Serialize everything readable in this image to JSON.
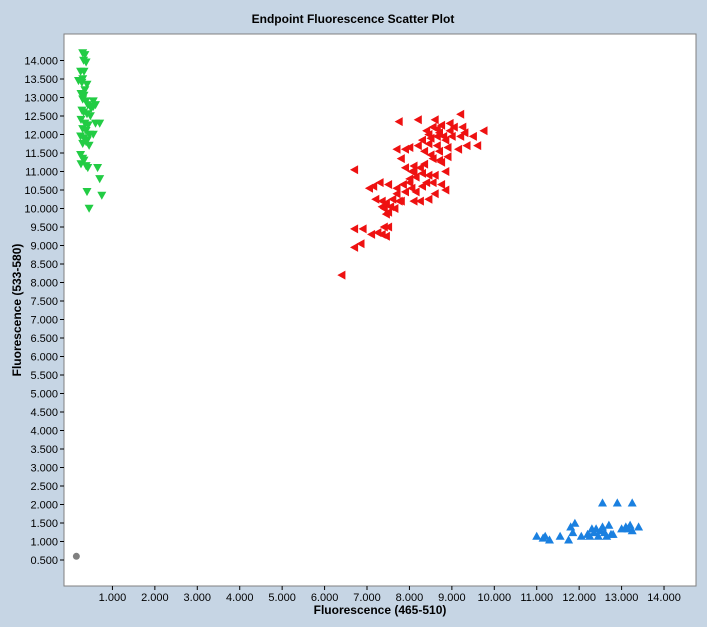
{
  "chart_data": {
    "type": "scatter",
    "title": "Endpoint Fluorescence Scatter Plot",
    "xlabel": "Fluorescence (465-510)",
    "ylabel": "Fluorescence (533-580)",
    "xlim": [
      0,
      15000
    ],
    "ylim": [
      0,
      15000
    ],
    "x_ticks": [
      1000,
      2000,
      3000,
      4000,
      5000,
      6000,
      7000,
      8000,
      9000,
      10000,
      11000,
      12000,
      13000,
      14000
    ],
    "x_tick_labels": [
      "1.000",
      "2.000",
      "3.000",
      "4.000",
      "5.000",
      "6.000",
      "7.000",
      "8.000",
      "9.000",
      "10.000",
      "11.000",
      "12.000",
      "13.000",
      "14.000"
    ],
    "y_ticks": [
      500,
      1000,
      1500,
      2000,
      2500,
      3000,
      3500,
      4000,
      4500,
      5000,
      5500,
      6000,
      6500,
      7000,
      7500,
      8000,
      8500,
      9000,
      9500,
      10000,
      10500,
      11000,
      11500,
      12000,
      12500,
      13000,
      13500,
      14000
    ],
    "y_tick_labels": [
      "0.500",
      "1.000",
      "1.500",
      "2.000",
      "2.500",
      "3.000",
      "3.500",
      "4.000",
      "4.500",
      "5.000",
      "5.500",
      "6.000",
      "6.500",
      "7.000",
      "7.500",
      "8.000",
      "8.500",
      "9.000",
      "9.500",
      "10.000",
      "10.500",
      "11.000",
      "11.500",
      "12.000",
      "12.500",
      "13.000",
      "13.500",
      "14.000"
    ],
    "grid": false,
    "background": "#c6d5e4",
    "plot_background": "#ffffff",
    "series": [
      {
        "marker": "triangle-down",
        "color": "#22cc44",
        "points": [
          [
            300,
            14200
          ],
          [
            350,
            14150
          ],
          [
            320,
            14000
          ],
          [
            380,
            13950
          ],
          [
            250,
            13700
          ],
          [
            330,
            13700
          ],
          [
            300,
            13500
          ],
          [
            200,
            13450
          ],
          [
            280,
            13400
          ],
          [
            400,
            13350
          ],
          [
            350,
            13200
          ],
          [
            260,
            13100
          ],
          [
            330,
            13050
          ],
          [
            300,
            12950
          ],
          [
            380,
            12900
          ],
          [
            420,
            12800
          ],
          [
            500,
            12700
          ],
          [
            550,
            12750
          ],
          [
            280,
            12650
          ],
          [
            320,
            12600
          ],
          [
            400,
            12550
          ],
          [
            480,
            12500
          ],
          [
            260,
            12400
          ],
          [
            350,
            12300
          ],
          [
            430,
            12250
          ],
          [
            300,
            12150
          ],
          [
            380,
            12100
          ],
          [
            460,
            12000
          ],
          [
            250,
            11950
          ],
          [
            330,
            11900
          ],
          [
            410,
            11850
          ],
          [
            380,
            11800
          ],
          [
            300,
            11750
          ],
          [
            450,
            11700
          ],
          [
            250,
            11450
          ],
          [
            300,
            11350
          ],
          [
            330,
            11300
          ],
          [
            260,
            11200
          ],
          [
            380,
            11150
          ],
          [
            420,
            11100
          ],
          [
            600,
            12300
          ],
          [
            700,
            12300
          ],
          [
            550,
            12000
          ],
          [
            650,
            11100
          ],
          [
            700,
            10800
          ],
          [
            400,
            10450
          ],
          [
            750,
            10350
          ],
          [
            450,
            10000
          ],
          [
            550,
            12900
          ],
          [
            600,
            12800
          ]
        ]
      },
      {
        "marker": "triangle-left",
        "color": "#ee1111",
        "points": [
          [
            6400,
            8200
          ],
          [
            6700,
            8950
          ],
          [
            6850,
            9050
          ],
          [
            6700,
            9450
          ],
          [
            6900,
            9450
          ],
          [
            7100,
            9300
          ],
          [
            7250,
            9350
          ],
          [
            7400,
            9500
          ],
          [
            7350,
            9300
          ],
          [
            7450,
            9250
          ],
          [
            7500,
            9500
          ],
          [
            7400,
            10000
          ],
          [
            7550,
            10050
          ],
          [
            7650,
            10000
          ],
          [
            7350,
            10200
          ],
          [
            7450,
            10150
          ],
          [
            7600,
            10250
          ],
          [
            7750,
            10200
          ],
          [
            7800,
            10200
          ],
          [
            7450,
            9850
          ],
          [
            7150,
            10600
          ],
          [
            7300,
            10700
          ],
          [
            7500,
            10650
          ],
          [
            7700,
            10550
          ],
          [
            7850,
            10650
          ],
          [
            8000,
            10700
          ],
          [
            7900,
            10450
          ],
          [
            8050,
            10550
          ],
          [
            8150,
            10450
          ],
          [
            8300,
            10600
          ],
          [
            8000,
            10800
          ],
          [
            8150,
            10850
          ],
          [
            8300,
            10950
          ],
          [
            8450,
            10900
          ],
          [
            8250,
            10200
          ],
          [
            8450,
            10250
          ],
          [
            8600,
            10400
          ],
          [
            8750,
            10650
          ],
          [
            8850,
            10500
          ],
          [
            8100,
            10200
          ],
          [
            7900,
            11100
          ],
          [
            8100,
            11150
          ],
          [
            8350,
            11200
          ],
          [
            8550,
            11350
          ],
          [
            8700,
            11300
          ],
          [
            8900,
            11400
          ],
          [
            8500,
            11450
          ],
          [
            8250,
            11100
          ],
          [
            8100,
            11000
          ],
          [
            7800,
            11350
          ],
          [
            7700,
            11600
          ],
          [
            7900,
            11600
          ],
          [
            8200,
            11700
          ],
          [
            8450,
            11750
          ],
          [
            8650,
            11700
          ],
          [
            8900,
            11650
          ],
          [
            9150,
            11600
          ],
          [
            8350,
            11550
          ],
          [
            8700,
            11550
          ],
          [
            8000,
            11650
          ],
          [
            8300,
            11850
          ],
          [
            8500,
            11900
          ],
          [
            8650,
            11950
          ],
          [
            8800,
            11950
          ],
          [
            9000,
            11950
          ],
          [
            9200,
            11950
          ],
          [
            8450,
            12000
          ],
          [
            8700,
            12050
          ],
          [
            8950,
            12100
          ],
          [
            9300,
            12050
          ],
          [
            9500,
            11950
          ],
          [
            9750,
            12100
          ],
          [
            8550,
            12200
          ],
          [
            8750,
            12250
          ],
          [
            9050,
            12200
          ],
          [
            9250,
            12200
          ],
          [
            8600,
            12400
          ],
          [
            8950,
            12300
          ],
          [
            9200,
            12550
          ],
          [
            7750,
            12350
          ],
          [
            8200,
            12400
          ],
          [
            8400,
            12100
          ],
          [
            8650,
            12150
          ],
          [
            8850,
            11850
          ],
          [
            9350,
            11700
          ],
          [
            9600,
            11700
          ],
          [
            8750,
            11250
          ],
          [
            8850,
            11000
          ],
          [
            8600,
            10900
          ],
          [
            6700,
            11050
          ],
          [
            7050,
            10550
          ],
          [
            8050,
            11000
          ],
          [
            7700,
            10400
          ],
          [
            8400,
            10700
          ],
          [
            8550,
            10700
          ],
          [
            7200,
            10250
          ],
          [
            7500,
            9900
          ],
          [
            7350,
            10050
          ]
        ]
      },
      {
        "marker": "triangle-up",
        "color": "#1a80e0",
        "points": [
          [
            11000,
            1150
          ],
          [
            11150,
            1100
          ],
          [
            11300,
            1050
          ],
          [
            11200,
            1150
          ],
          [
            11550,
            1150
          ],
          [
            11750,
            1050
          ],
          [
            11800,
            1400
          ],
          [
            11900,
            1500
          ],
          [
            11850,
            1250
          ],
          [
            12050,
            1150
          ],
          [
            12200,
            1200
          ],
          [
            12250,
            1150
          ],
          [
            12300,
            1350
          ],
          [
            12400,
            1350
          ],
          [
            12350,
            1250
          ],
          [
            12450,
            1150
          ],
          [
            12500,
            1300
          ],
          [
            12550,
            1400
          ],
          [
            12600,
            1250
          ],
          [
            12700,
            1450
          ],
          [
            12650,
            1150
          ],
          [
            12800,
            1200
          ],
          [
            13000,
            1350
          ],
          [
            13100,
            1400
          ],
          [
            13200,
            1450
          ],
          [
            13250,
            1300
          ],
          [
            13400,
            1400
          ],
          [
            12550,
            2050
          ],
          [
            12900,
            2050
          ],
          [
            13250,
            2050
          ],
          [
            12750,
            1200
          ],
          [
            13150,
            1350
          ]
        ]
      },
      {
        "marker": "circle",
        "color": "#808080",
        "points": [
          [
            150,
            600
          ]
        ]
      }
    ]
  }
}
